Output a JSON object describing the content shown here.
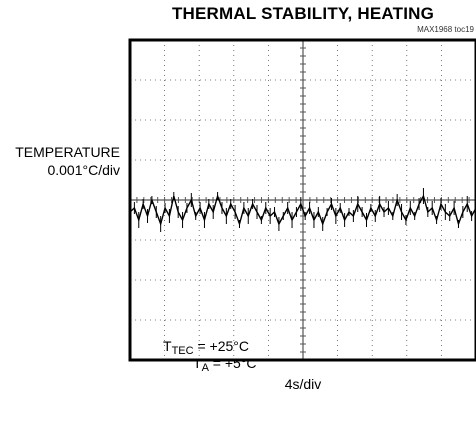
{
  "chart_data": {
    "type": "line",
    "title": "THERMAL STABILITY, HEATING",
    "subtitle": "MAX1968 toc19",
    "ylabel_line1": "TEMPERATURE",
    "ylabel_line2": "0.001°C/div",
    "xlabel": "4s/div",
    "x_divisions": 10,
    "y_divisions": 8,
    "x_unit": "div",
    "y_unit": "div",
    "xlim": [
      0,
      10
    ],
    "ylim": [
      -4,
      4
    ],
    "grid": true,
    "series": [
      {
        "values": [
          -0.3,
          -0.2,
          -0.5,
          -0.1,
          -0.4,
          0.0,
          -0.3,
          -0.6,
          -0.2,
          -0.4,
          0.1,
          -0.3,
          -0.5,
          -0.2,
          0.0,
          -0.4,
          -0.2,
          -0.5,
          -0.1,
          -0.3,
          0.1,
          -0.2,
          -0.4,
          -0.1,
          -0.3,
          -0.6,
          -0.2,
          -0.4,
          -0.1,
          -0.3,
          -0.5,
          -0.2,
          -0.4,
          -0.3,
          -0.6,
          -0.4,
          -0.2,
          -0.5,
          -0.3,
          -0.1,
          -0.4,
          -0.2,
          -0.5,
          -0.3,
          -0.6,
          -0.3,
          -0.1,
          -0.4,
          -0.2,
          -0.5,
          -0.3,
          -0.4,
          -0.1,
          -0.3,
          -0.5,
          -0.2,
          -0.4,
          -0.1,
          -0.3,
          -0.2,
          -0.4,
          0.0,
          -0.3,
          -0.5,
          -0.2,
          -0.4,
          -0.1,
          0.1,
          -0.3,
          -0.2,
          -0.5,
          -0.1,
          -0.3,
          -0.4,
          -0.2,
          -0.6,
          -0.3,
          -0.1,
          -0.4,
          -0.2
        ]
      }
    ],
    "annotations": {
      "line1_main": "T",
      "line1_sub": "TEC",
      "line1_rest": " = +25°C",
      "line2_main": "T",
      "line2_sub": "A",
      "line2_rest": " = +5°C"
    }
  }
}
